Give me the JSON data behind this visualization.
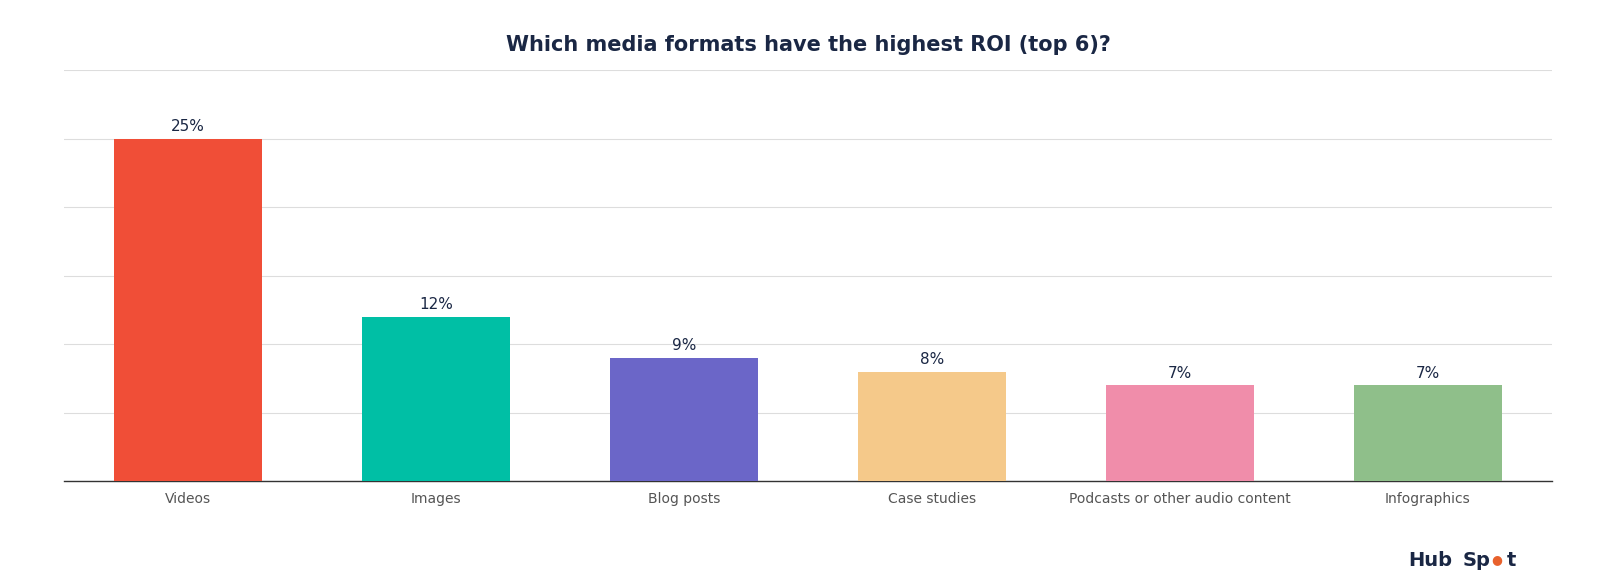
{
  "title": "Which media formats have the highest ROI (top 6)?",
  "categories": [
    "Videos",
    "Images",
    "Blog posts",
    "Case studies",
    "Podcasts or other audio content",
    "Infographics"
  ],
  "values": [
    25,
    12,
    9,
    8,
    7,
    7
  ],
  "bar_colors": [
    "#F04E37",
    "#00BFA5",
    "#6B66C8",
    "#F5C98A",
    "#F08DAA",
    "#8FBF8A"
  ],
  "label_format": "{}%",
  "figsize": [
    16.0,
    5.87
  ],
  "dpi": 100,
  "ylim": [
    0,
    30
  ],
  "yticks": [
    0,
    5,
    10,
    15,
    20,
    25,
    30
  ],
  "background_color": "#FFFFFF",
  "title_color": "#1A2744",
  "title_fontsize": 15,
  "label_fontsize": 11,
  "tick_fontsize": 10,
  "bar_width": 0.6,
  "hubspot_color": "#1A2744",
  "hubspot_orange": "#E8612C",
  "grid_color": "#DDDDDD",
  "bottom_spine_color": "#333333"
}
